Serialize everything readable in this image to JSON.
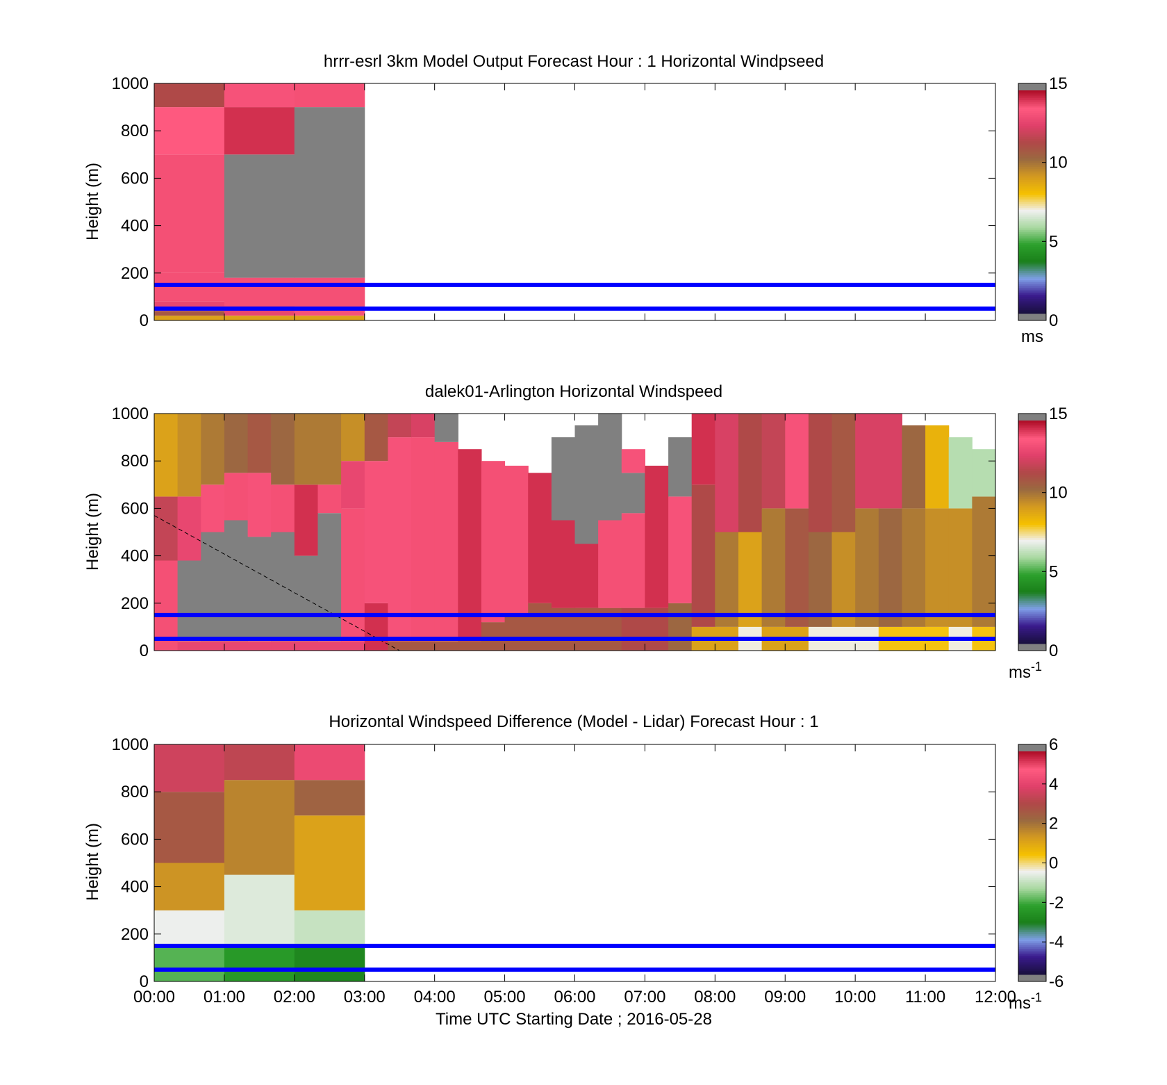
{
  "colors": {
    "cmap_speed": [
      "#1a1040",
      "#3a1a8c",
      "#7f9fe8",
      "#1a7f1a",
      "#2ca02c",
      "#a8d8a0",
      "#f0f0f0",
      "#f5c000",
      "#d49a20",
      "#9a6a40",
      "#b04848",
      "#e0406a",
      "#ff5a80",
      "#b0102a"
    ],
    "cmap_diff": [
      "#1a1040",
      "#3a1a8c",
      "#7f9fe8",
      "#1a7f1a",
      "#2ca02c",
      "#a8d8a0",
      "#f0f0f0",
      "#f5c000",
      "#d49a20",
      "#9a6a40",
      "#b04848",
      "#e0406a",
      "#ff5a80",
      "#b0102a"
    ],
    "missing": "#808080",
    "band_line": "#0000ff",
    "diagonal": "#000000"
  },
  "x_axis": {
    "ticks": [
      "00:00",
      "01:00",
      "02:00",
      "03:00",
      "04:00",
      "05:00",
      "06:00",
      "07:00",
      "08:00",
      "09:00",
      "10:00",
      "11:00",
      "12:00"
    ],
    "xlabel": "Time UTC  Starting Date ; 2016-05-28"
  },
  "chart_data": [
    {
      "type": "heatmap",
      "title": "hrrr-esrl 3km Model Output   Forecast Hour : 1 Horizontal Windpseed",
      "ylabel": "Height (m)",
      "ylim": [
        0,
        1000
      ],
      "yticks": [
        "0",
        "200",
        "400",
        "600",
        "800",
        "1000"
      ],
      "xlim": [
        "00:00",
        "12:00"
      ],
      "colorbar": {
        "min": 0,
        "max": 15,
        "ticks": [
          "0",
          "5",
          "10",
          "15"
        ],
        "unit": "ms"
      },
      "band_heights": [
        50,
        150
      ],
      "columns": [
        {
          "start": "00:00",
          "end": "01:00",
          "layers": [
            [
              0,
              20,
              9
            ],
            [
              20,
              40,
              11
            ],
            [
              40,
              80,
              13
            ],
            [
              80,
              200,
              14
            ],
            [
              200,
              700,
              14
            ],
            [
              700,
              900,
              13.8
            ],
            [
              900,
              1000,
              11.5
            ]
          ]
        },
        {
          "start": "01:00",
          "end": "02:00",
          "layers": [
            [
              0,
              20,
              9
            ],
            [
              20,
              60,
              13
            ],
            [
              60,
              180,
              14
            ],
            [
              180,
              700,
              null
            ],
            [
              700,
              900,
              14.5
            ],
            [
              900,
              1000,
              13.5
            ]
          ]
        },
        {
          "start": "02:00",
          "end": "03:00",
          "layers": [
            [
              0,
              20,
              9
            ],
            [
              20,
              60,
              13.5
            ],
            [
              60,
              180,
              14
            ],
            [
              180,
              900,
              null
            ],
            [
              900,
              1000,
              14
            ]
          ]
        }
      ]
    },
    {
      "type": "heatmap",
      "title": "dalek01-Arlington  Horizontal Windspeed",
      "ylabel": "Height (m)",
      "ylim": [
        0,
        1000
      ],
      "yticks": [
        "0",
        "200",
        "400",
        "600",
        "800",
        "1000"
      ],
      "xlim": [
        "00:00",
        "12:00"
      ],
      "colorbar": {
        "min": 0,
        "max": 15,
        "ticks": [
          "0",
          "5",
          "10",
          "15"
        ],
        "unit": "ms-1"
      },
      "band_heights": [
        50,
        150
      ],
      "diagonal_line": {
        "from": [
          "00:00",
          570
        ],
        "to": [
          "03:30",
          0
        ]
      },
      "columns": [
        {
          "start": "00:00",
          "end": "00:20",
          "layers": [
            [
              0,
              380,
              14
            ],
            [
              380,
              650,
              12
            ],
            [
              650,
              1000,
              9
            ]
          ]
        },
        {
          "start": "00:20",
          "end": "00:40",
          "layers": [
            [
              0,
              40,
              13
            ],
            [
              40,
              380,
              null
            ],
            [
              380,
              650,
              13
            ],
            [
              650,
              1000,
              9.5
            ]
          ]
        },
        {
          "start": "00:40",
          "end": "01:00",
          "layers": [
            [
              0,
              40,
              13
            ],
            [
              40,
              500,
              null
            ],
            [
              500,
              700,
              13.5
            ],
            [
              700,
              1000,
              10
            ]
          ]
        },
        {
          "start": "01:00",
          "end": "01:20",
          "layers": [
            [
              0,
              40,
              13
            ],
            [
              40,
              550,
              null
            ],
            [
              550,
              750,
              14
            ],
            [
              750,
              1000,
              10.5
            ]
          ]
        },
        {
          "start": "01:20",
          "end": "01:40",
          "layers": [
            [
              0,
              40,
              13
            ],
            [
              40,
              480,
              null
            ],
            [
              480,
              750,
              13.5
            ],
            [
              750,
              1000,
              11
            ]
          ]
        },
        {
          "start": "01:40",
          "end": "02:00",
          "layers": [
            [
              0,
              40,
              13
            ],
            [
              40,
              500,
              null
            ],
            [
              500,
              700,
              14
            ],
            [
              700,
              1000,
              10.5
            ]
          ]
        },
        {
          "start": "02:00",
          "end": "02:20",
          "layers": [
            [
              0,
              40,
              13
            ],
            [
              40,
              400,
              null
            ],
            [
              400,
              700,
              14.5
            ],
            [
              700,
              1000,
              10
            ]
          ]
        },
        {
          "start": "02:20",
          "end": "02:40",
          "layers": [
            [
              0,
              40,
              13
            ],
            [
              40,
              580,
              null
            ],
            [
              580,
              700,
              14
            ],
            [
              700,
              1000,
              10
            ]
          ]
        },
        {
          "start": "02:40",
          "end": "03:00",
          "layers": [
            [
              0,
              40,
              13
            ],
            [
              40,
              600,
              14
            ],
            [
              600,
              800,
              13
            ],
            [
              800,
              1000,
              9.5
            ]
          ]
        },
        {
          "start": "03:00",
          "end": "03:20",
          "layers": [
            [
              0,
              200,
              14.5
            ],
            [
              200,
              800,
              13.5
            ],
            [
              800,
              1000,
              11
            ]
          ]
        },
        {
          "start": "03:20",
          "end": "03:40",
          "layers": [
            [
              0,
              40,
              11
            ],
            [
              40,
              900,
              13.5
            ],
            [
              900,
              1000,
              12
            ]
          ]
        },
        {
          "start": "03:40",
          "end": "04:00",
          "layers": [
            [
              0,
              40,
              11
            ],
            [
              40,
              900,
              14
            ],
            [
              900,
              1000,
              12.5
            ]
          ]
        },
        {
          "start": "04:00",
          "end": "04:20",
          "layers": [
            [
              0,
              40,
              11
            ],
            [
              40,
              880,
              14
            ],
            [
              880,
              1000,
              null
            ]
          ]
        },
        {
          "start": "04:20",
          "end": "04:40",
          "layers": [
            [
              0,
              40,
              11
            ],
            [
              40,
              850,
              14.5
            ]
          ]
        },
        {
          "start": "04:40",
          "end": "05:00",
          "layers": [
            [
              0,
              120,
              11
            ],
            [
              120,
              800,
              14
            ]
          ]
        },
        {
          "start": "05:00",
          "end": "05:20",
          "layers": [
            [
              0,
              150,
              11
            ],
            [
              150,
              780,
              14
            ]
          ]
        },
        {
          "start": "05:20",
          "end": "05:40",
          "layers": [
            [
              0,
              200,
              11
            ],
            [
              200,
              750,
              14.5
            ]
          ]
        },
        {
          "start": "05:40",
          "end": "06:00",
          "layers": [
            [
              0,
              180,
              11
            ],
            [
              180,
              550,
              14.5
            ],
            [
              550,
              900,
              null
            ]
          ]
        },
        {
          "start": "06:00",
          "end": "06:20",
          "layers": [
            [
              0,
              180,
              11
            ],
            [
              180,
              450,
              14.5
            ],
            [
              450,
              950,
              null
            ]
          ]
        },
        {
          "start": "06:20",
          "end": "06:40",
          "layers": [
            [
              0,
              180,
              11
            ],
            [
              180,
              550,
              14
            ],
            [
              550,
              1000,
              null
            ]
          ]
        },
        {
          "start": "06:40",
          "end": "07:00",
          "layers": [
            [
              0,
              180,
              11.5
            ],
            [
              180,
              580,
              14
            ],
            [
              580,
              750,
              null
            ],
            [
              750,
              850,
              13.5
            ]
          ]
        },
        {
          "start": "07:00",
          "end": "07:20",
          "layers": [
            [
              0,
              180,
              11.5
            ],
            [
              180,
              780,
              14.5
            ]
          ]
        },
        {
          "start": "07:20",
          "end": "07:40",
          "layers": [
            [
              0,
              200,
              10.5
            ],
            [
              200,
              650,
              13.5
            ],
            [
              650,
              900,
              null
            ]
          ]
        },
        {
          "start": "07:40",
          "end": "08:00",
          "layers": [
            [
              0,
              100,
              9
            ],
            [
              100,
              700,
              11.5
            ],
            [
              700,
              1000,
              14.5
            ]
          ]
        },
        {
          "start": "08:00",
          "end": "08:20",
          "layers": [
            [
              0,
              100,
              9
            ],
            [
              100,
              500,
              10
            ],
            [
              500,
              1000,
              12.5
            ]
          ]
        },
        {
          "start": "08:20",
          "end": "08:40",
          "layers": [
            [
              0,
              100,
              7
            ],
            [
              100,
              500,
              9
            ],
            [
              500,
              1000,
              11.5
            ]
          ]
        },
        {
          "start": "08:40",
          "end": "09:00",
          "layers": [
            [
              0,
              100,
              9
            ],
            [
              100,
              600,
              10
            ],
            [
              600,
              1000,
              12
            ]
          ]
        },
        {
          "start": "09:00",
          "end": "09:20",
          "layers": [
            [
              0,
              100,
              9
            ],
            [
              100,
              600,
              11
            ],
            [
              600,
              1000,
              13.5
            ]
          ]
        },
        {
          "start": "09:20",
          "end": "09:40",
          "layers": [
            [
              0,
              100,
              7
            ],
            [
              100,
              500,
              10.5
            ],
            [
              500,
              1000,
              11.5
            ]
          ]
        },
        {
          "start": "09:40",
          "end": "10:00",
          "layers": [
            [
              0,
              100,
              7
            ],
            [
              100,
              500,
              9.5
            ],
            [
              500,
              1000,
              11
            ]
          ]
        },
        {
          "start": "10:00",
          "end": "10:20",
          "layers": [
            [
              0,
              100,
              7
            ],
            [
              100,
              600,
              10
            ],
            [
              600,
              1000,
              12.5
            ]
          ]
        },
        {
          "start": "10:20",
          "end": "10:40",
          "layers": [
            [
              0,
              100,
              8
            ],
            [
              100,
              600,
              10.5
            ],
            [
              600,
              1000,
              12.5
            ]
          ]
        },
        {
          "start": "10:40",
          "end": "11:00",
          "layers": [
            [
              0,
              100,
              8
            ],
            [
              100,
              600,
              10
            ],
            [
              600,
              950,
              10.5
            ]
          ]
        },
        {
          "start": "11:00",
          "end": "11:20",
          "layers": [
            [
              0,
              100,
              8
            ],
            [
              100,
              600,
              9.5
            ],
            [
              600,
              950,
              8.5
            ]
          ]
        },
        {
          "start": "11:20",
          "end": "11:40",
          "layers": [
            [
              0,
              100,
              7
            ],
            [
              100,
              600,
              9.5
            ],
            [
              600,
              900,
              6
            ]
          ]
        },
        {
          "start": "11:40",
          "end": "12:00",
          "layers": [
            [
              0,
              100,
              8
            ],
            [
              100,
              650,
              10
            ],
            [
              650,
              850,
              6
            ]
          ]
        }
      ]
    },
    {
      "type": "heatmap",
      "title": "Horizontal Windspeed Difference (Model - Lidar) Forecast Hour : 1",
      "ylabel": "Height (m)",
      "ylim": [
        0,
        1000
      ],
      "yticks": [
        "0",
        "200",
        "400",
        "600",
        "800",
        "1000"
      ],
      "xlim": [
        "00:00",
        "12:00"
      ],
      "colorbar": {
        "min": -6,
        "max": 6,
        "ticks": [
          "-6",
          "-4",
          "-2",
          "0",
          "2",
          "4",
          "6"
        ],
        "unit": "ms-1"
      },
      "band_heights": [
        50,
        150
      ],
      "columns": [
        {
          "start": "00:00",
          "end": "01:00",
          "layers": [
            [
              0,
              150,
              -2
            ],
            [
              150,
              300,
              -0.5
            ],
            [
              300,
              500,
              1.5
            ],
            [
              500,
              800,
              2.8
            ],
            [
              800,
              1000,
              3.8
            ]
          ]
        },
        {
          "start": "01:00",
          "end": "02:00",
          "layers": [
            [
              0,
              150,
              -2.5
            ],
            [
              150,
              450,
              -0.7
            ],
            [
              450,
              850,
              1.8
            ],
            [
              850,
              1000,
              3.5
            ]
          ]
        },
        {
          "start": "02:00",
          "end": "03:00",
          "layers": [
            [
              0,
              150,
              -3
            ],
            [
              150,
              300,
              -1
            ],
            [
              300,
              700,
              1.2
            ],
            [
              700,
              850,
              2.5
            ],
            [
              850,
              1000,
              4.5
            ]
          ]
        }
      ]
    }
  ]
}
